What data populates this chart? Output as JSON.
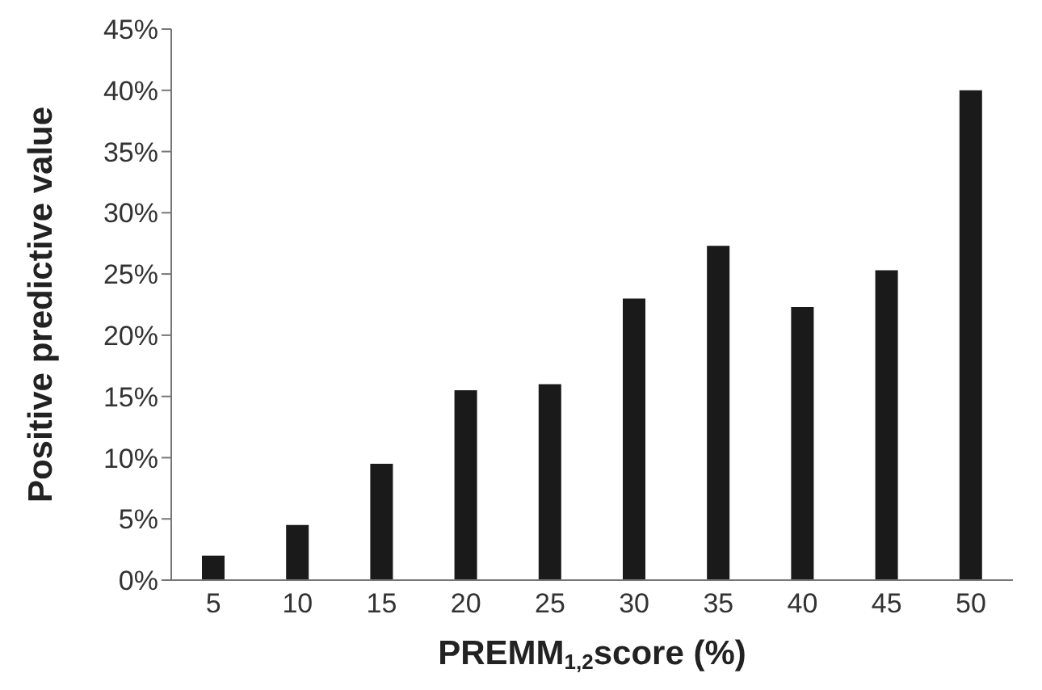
{
  "chart_data": {
    "type": "bar",
    "xlabel": "PREMM$_{1,2}$score (%)",
    "ylabel": "Positive predictive value",
    "categories": [
      "5",
      "10",
      "15",
      "20",
      "25",
      "30",
      "35",
      "40",
      "45",
      "50"
    ],
    "values": [
      2,
      4.5,
      9.5,
      15.5,
      16,
      23,
      27.3,
      22.3,
      25.3,
      40
    ],
    "color": "#1a1a1a",
    "ylim": [
      0,
      45
    ],
    "yticks": [
      {
        "value": 0,
        "label": "0%"
      },
      {
        "value": 5,
        "label": "5%"
      },
      {
        "value": 10,
        "label": "10%"
      },
      {
        "value": 15,
        "label": "15%"
      },
      {
        "value": 20,
        "label": "20%"
      },
      {
        "value": 25,
        "label": "25%"
      },
      {
        "value": 30,
        "label": "30%"
      },
      {
        "value": 35,
        "label": "35%"
      },
      {
        "value": 40,
        "label": "40%"
      },
      {
        "value": 45,
        "label": "45%"
      }
    ],
    "grid": false,
    "legend": false
  }
}
